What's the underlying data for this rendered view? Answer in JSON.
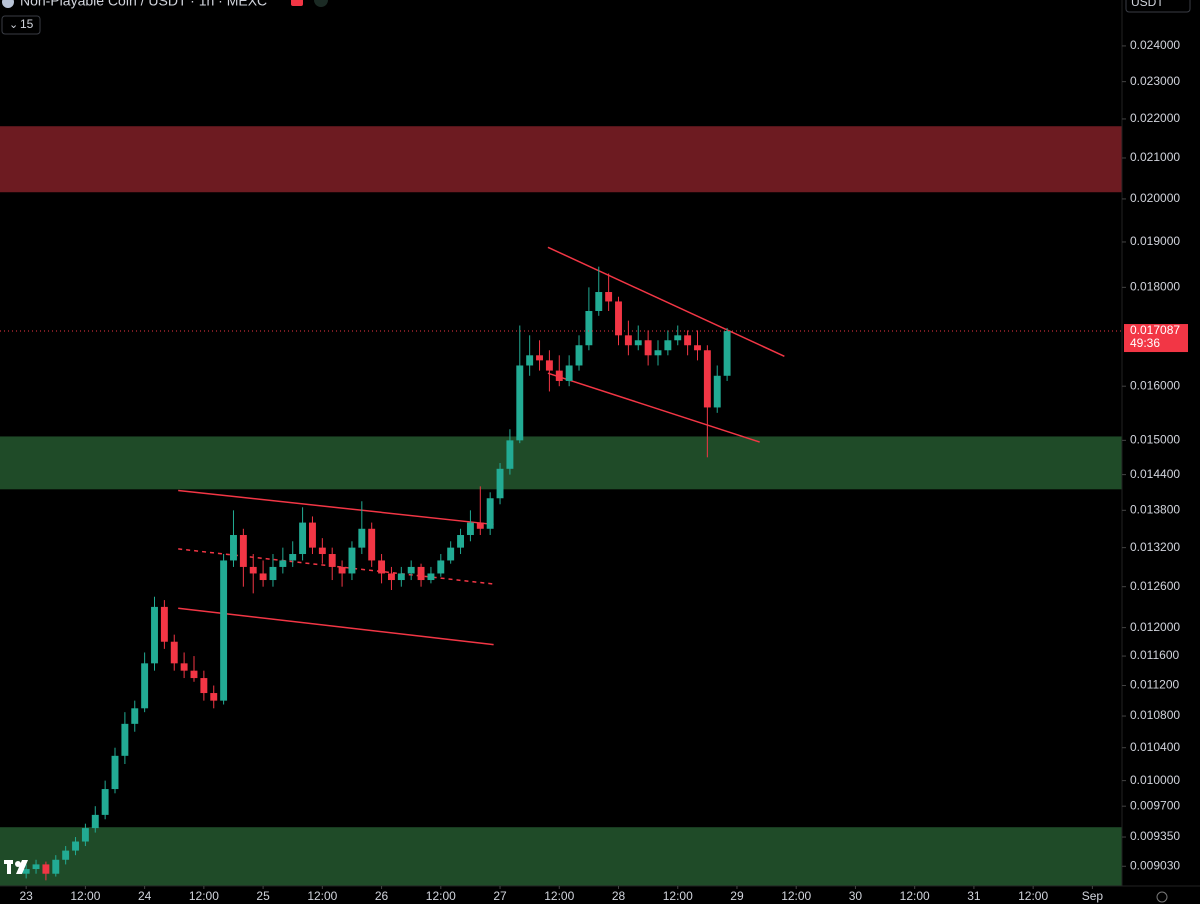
{
  "header": {
    "title": "Non-Playable Coin / USDT · 1h · MEXC",
    "count": 15,
    "currency": "USDT"
  },
  "chart_data": {
    "type": "candlestick",
    "countdown": "49:36",
    "log_scale": true,
    "xlim": [
      -5.3,
      222
    ],
    "ylim": [
      0.00882,
      0.02535
    ],
    "xticks": [
      {
        "value": 0,
        "label": "23"
      },
      {
        "value": 12,
        "label": "12:00"
      },
      {
        "value": 24,
        "label": "24"
      },
      {
        "value": 36,
        "label": "12:00"
      },
      {
        "value": 48,
        "label": "25"
      },
      {
        "value": 60,
        "label": "12:00"
      },
      {
        "value": 72,
        "label": "26"
      },
      {
        "value": 84,
        "label": "12:00"
      },
      {
        "value": 96,
        "label": "27"
      },
      {
        "value": 108,
        "label": "12:00"
      },
      {
        "value": 120,
        "label": "28"
      },
      {
        "value": 132,
        "label": "12:00"
      },
      {
        "value": 144,
        "label": "29"
      },
      {
        "value": 156,
        "label": "12:00"
      },
      {
        "value": 168,
        "label": "30"
      },
      {
        "value": 180,
        "label": "12:00"
      },
      {
        "value": 192,
        "label": "31"
      },
      {
        "value": 204,
        "label": "12:00"
      },
      {
        "value": 216,
        "label": "Sep"
      }
    ],
    "yticks": [
      {
        "value": 0.024,
        "label": "0.024000"
      },
      {
        "value": 0.023,
        "label": "0.023000"
      },
      {
        "value": 0.022,
        "label": "0.022000"
      },
      {
        "value": 0.021,
        "label": "0.021000"
      },
      {
        "value": 0.02,
        "label": "0.020000"
      },
      {
        "value": 0.019,
        "label": "0.019000"
      },
      {
        "value": 0.018,
        "label": "0.018000"
      },
      {
        "value": 0.016,
        "label": "0.016000"
      },
      {
        "value": 0.015,
        "label": "0.015000"
      },
      {
        "value": 0.0144,
        "label": "0.014400"
      },
      {
        "value": 0.0138,
        "label": "0.013800"
      },
      {
        "value": 0.0132,
        "label": "0.013200"
      },
      {
        "value": 0.0126,
        "label": "0.012600"
      },
      {
        "value": 0.012,
        "label": "0.012000"
      },
      {
        "value": 0.0116,
        "label": "0.011600"
      },
      {
        "value": 0.0112,
        "label": "0.011200"
      },
      {
        "value": 0.0108,
        "label": "0.010800"
      },
      {
        "value": 0.0104,
        "label": "0.010400"
      },
      {
        "value": 0.01,
        "label": "0.010000"
      },
      {
        "value": 0.0097,
        "label": "0.009700"
      },
      {
        "value": 0.00935,
        "label": "0.009350"
      },
      {
        "value": 0.00903,
        "label": "0.009030"
      }
    ],
    "up_color": "#22ab94",
    "down_color": "#f23645",
    "zones": [
      {
        "from": 0.02016,
        "to": 0.02181,
        "color": "#6d1b21"
      },
      {
        "from": 0.01415,
        "to": 0.01507,
        "color": "#1f4b28"
      },
      {
        "from": 0.00882,
        "to": 0.00946,
        "color": "#1f4b28"
      }
    ],
    "trendlines": [
      {
        "x": [
          105.7,
          153.6
        ],
        "y": [
          0.01888,
          0.01658
        ],
        "color": "#f23645",
        "dashed": false
      },
      {
        "x": [
          105.7,
          148.6
        ],
        "y": [
          0.01625,
          0.01497
        ],
        "color": "#f23645",
        "dashed": false
      },
      {
        "x": [
          30.8,
          94.7
        ],
        "y": [
          0.01413,
          0.01357
        ],
        "color": "#f23645",
        "dashed": false
      },
      {
        "x": [
          30.8,
          94.7
        ],
        "y": [
          0.01228,
          0.01176
        ],
        "color": "#f23645",
        "dashed": false
      },
      {
        "x": [
          30.8,
          94.7
        ],
        "y": [
          0.01318,
          0.01264
        ],
        "color": "#f23645",
        "dashed": true
      }
    ],
    "x": [
      0,
      2,
      4,
      6,
      8,
      10,
      12,
      14,
      16,
      18,
      20,
      22,
      24,
      26,
      28,
      30,
      32,
      34,
      36,
      38,
      40,
      42,
      44,
      46,
      48,
      50,
      52,
      54,
      56,
      58,
      60,
      62,
      64,
      66,
      68,
      70,
      72,
      74,
      76,
      78,
      80,
      82,
      84,
      86,
      88,
      90,
      92,
      94,
      96,
      98,
      100,
      102,
      104,
      106,
      108,
      110,
      112,
      114,
      116,
      118,
      120,
      122,
      124,
      126,
      128,
      130,
      132,
      134,
      136,
      138,
      140,
      142
    ],
    "open": [
      0.00895,
      0.009,
      0.00905,
      0.00895,
      0.0091,
      0.0092,
      0.0093,
      0.00945,
      0.0096,
      0.0099,
      0.0103,
      0.0107,
      0.0109,
      0.0115,
      0.0123,
      0.0118,
      0.0115,
      0.0114,
      0.0113,
      0.0111,
      0.011,
      0.013,
      0.0134,
      0.0129,
      0.0128,
      0.0127,
      0.0129,
      0.013,
      0.0131,
      0.0136,
      0.0132,
      0.0131,
      0.0129,
      0.0128,
      0.0132,
      0.0135,
      0.013,
      0.0128,
      0.0127,
      0.0128,
      0.0129,
      0.0127,
      0.0128,
      0.013,
      0.0132,
      0.0134,
      0.0136,
      0.0135,
      0.014,
      0.0145,
      0.015,
      0.0164,
      0.0166,
      0.0165,
      0.0163,
      0.0161,
      0.0164,
      0.0168,
      0.0175,
      0.0179,
      0.0177,
      0.017,
      0.0168,
      0.0169,
      0.0166,
      0.0167,
      0.0169,
      0.017,
      0.0168,
      0.0167,
      0.0156,
      0.0162
    ],
    "high": [
      0.00905,
      0.0091,
      0.00908,
      0.00915,
      0.00925,
      0.00935,
      0.0095,
      0.0097,
      0.01,
      0.0104,
      0.01085,
      0.011,
      0.01165,
      0.01245,
      0.0124,
      0.0119,
      0.01165,
      0.0116,
      0.0114,
      0.0112,
      0.0131,
      0.0138,
      0.0135,
      0.0131,
      0.013,
      0.0131,
      0.0132,
      0.0133,
      0.01385,
      0.0137,
      0.01335,
      0.0132,
      0.013,
      0.0133,
      0.01395,
      0.0136,
      0.0131,
      0.0129,
      0.0129,
      0.013,
      0.01295,
      0.0129,
      0.0131,
      0.0133,
      0.0135,
      0.0138,
      0.0142,
      0.0141,
      0.0146,
      0.0152,
      0.0172,
      0.017,
      0.0169,
      0.0167,
      0.0166,
      0.0166,
      0.017,
      0.018,
      0.01845,
      0.0183,
      0.0178,
      0.0173,
      0.0172,
      0.0171,
      0.0169,
      0.0171,
      0.0172,
      0.0171,
      0.0171,
      0.0168,
      0.0164,
      0.01715
    ],
    "low": [
      0.0089,
      0.00895,
      0.00888,
      0.00892,
      0.00905,
      0.00915,
      0.00925,
      0.0094,
      0.00955,
      0.00985,
      0.0102,
      0.0106,
      0.01085,
      0.0114,
      0.0117,
      0.0114,
      0.0113,
      0.01125,
      0.011,
      0.0109,
      0.01095,
      0.0129,
      0.0126,
      0.0125,
      0.0126,
      0.0126,
      0.0128,
      0.0129,
      0.013,
      0.0131,
      0.01295,
      0.0127,
      0.0126,
      0.0127,
      0.0131,
      0.0129,
      0.01265,
      0.01255,
      0.0126,
      0.0127,
      0.0126,
      0.01265,
      0.01275,
      0.01295,
      0.0131,
      0.0133,
      0.0134,
      0.0134,
      0.0139,
      0.0144,
      0.01495,
      0.0162,
      0.0163,
      0.0159,
      0.016,
      0.016,
      0.0163,
      0.0167,
      0.0174,
      0.0175,
      0.0168,
      0.0166,
      0.0167,
      0.0164,
      0.0164,
      0.0166,
      0.0168,
      0.0166,
      0.0165,
      0.0147,
      0.0155,
      0.0161
    ],
    "close": [
      0.009,
      0.00905,
      0.00895,
      0.0091,
      0.0092,
      0.0093,
      0.00945,
      0.0096,
      0.0099,
      0.0103,
      0.0107,
      0.0109,
      0.0115,
      0.0123,
      0.0118,
      0.0115,
      0.0114,
      0.0113,
      0.0111,
      0.011,
      0.013,
      0.0134,
      0.0129,
      0.0128,
      0.0127,
      0.0129,
      0.013,
      0.0131,
      0.0136,
      0.0132,
      0.0131,
      0.0129,
      0.0128,
      0.0132,
      0.0135,
      0.013,
      0.0128,
      0.0127,
      0.0128,
      0.0129,
      0.0127,
      0.0128,
      0.013,
      0.0132,
      0.0134,
      0.0136,
      0.0135,
      0.014,
      0.0145,
      0.015,
      0.0164,
      0.0166,
      0.0165,
      0.0163,
      0.0161,
      0.0164,
      0.0168,
      0.0175,
      0.0179,
      0.0177,
      0.017,
      0.0168,
      0.0169,
      0.0166,
      0.0167,
      0.0169,
      0.017,
      0.0168,
      0.0167,
      0.0156,
      0.0162,
      0.017087
    ]
  }
}
